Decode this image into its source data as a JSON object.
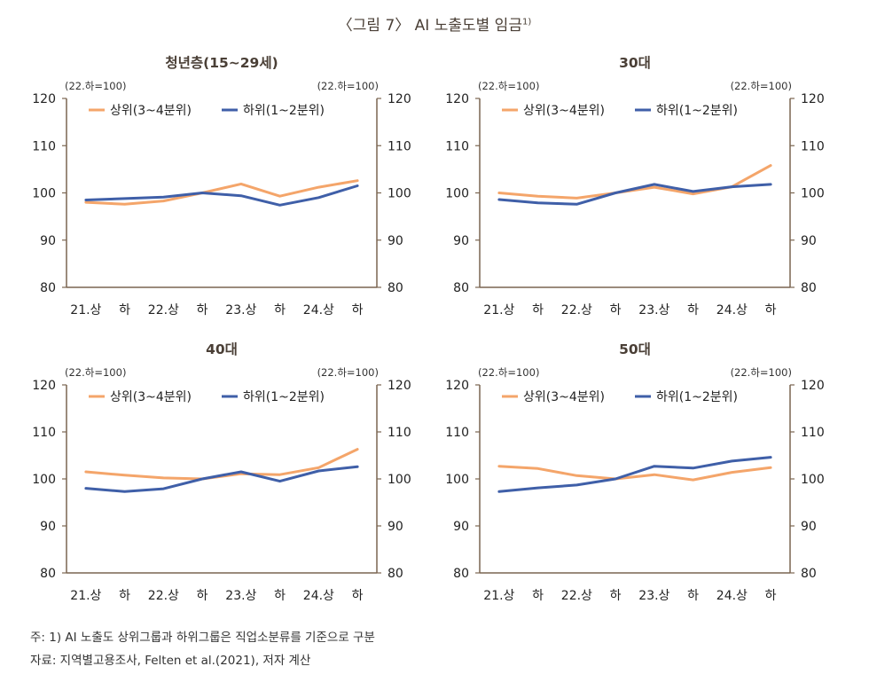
{
  "figure": {
    "title": "〈그림 7〉 AI 노출도별 임금",
    "title_sup": "1)",
    "notes": [
      "주: 1) AI 노출도 상위그룹과 하위그룹은 직업소분류를 기준으로 구분",
      "자료: 지역별고용조사, Felten et al.(2021), 저자 계산"
    ]
  },
  "colors": {
    "upper": "#F4A56A",
    "lower": "#3F5FA8",
    "axis": "#7A6550",
    "title": "#4a3f36"
  },
  "chart_data": [
    {
      "type": "line",
      "title": "청년층(15~29세)",
      "base_label_left": "(22.하=100)",
      "base_label_right": "(22.하=100)",
      "categories": [
        "21.상",
        "하",
        "22.상",
        "하",
        "23.상",
        "하",
        "24.상",
        "하"
      ],
      "ylim": [
        80,
        120
      ],
      "yticks": [
        80,
        90,
        100,
        110,
        120
      ],
      "series": [
        {
          "name": "상위(3~4분위)",
          "color": "#F4A56A",
          "values": [
            98.0,
            97.6,
            98.3,
            100.0,
            101.9,
            99.3,
            101.2,
            102.6
          ]
        },
        {
          "name": "하위(1~2분위)",
          "color": "#3F5FA8",
          "values": [
            98.5,
            98.8,
            99.1,
            100.0,
            99.4,
            97.4,
            99.0,
            101.5
          ]
        }
      ]
    },
    {
      "type": "line",
      "title": "30대",
      "base_label_left": "(22.하=100)",
      "base_label_right": "(22.하=100)",
      "categories": [
        "21.상",
        "하",
        "22.상",
        "하",
        "23.상",
        "하",
        "24.상",
        "하"
      ],
      "ylim": [
        80,
        120
      ],
      "yticks": [
        80,
        90,
        100,
        110,
        120
      ],
      "series": [
        {
          "name": "상위(3~4분위)",
          "color": "#F4A56A",
          "values": [
            100.0,
            99.3,
            98.9,
            100.0,
            101.2,
            99.8,
            101.3,
            105.8
          ]
        },
        {
          "name": "하위(1~2분위)",
          "color": "#3F5FA8",
          "values": [
            98.6,
            97.9,
            97.6,
            100.0,
            101.8,
            100.3,
            101.3,
            101.8
          ]
        }
      ]
    },
    {
      "type": "line",
      "title": "40대",
      "base_label_left": "(22.하=100)",
      "base_label_right": "(22.하=100)",
      "categories": [
        "21.상",
        "하",
        "22.상",
        "하",
        "23.상",
        "하",
        "24.상",
        "하"
      ],
      "ylim": [
        80,
        120
      ],
      "yticks": [
        80,
        90,
        100,
        110,
        120
      ],
      "series": [
        {
          "name": "상위(3~4분위)",
          "color": "#F4A56A",
          "values": [
            101.5,
            100.8,
            100.2,
            100.0,
            101.1,
            100.9,
            102.4,
            106.3
          ]
        },
        {
          "name": "하위(1~2분위)",
          "color": "#3F5FA8",
          "values": [
            98.0,
            97.3,
            97.9,
            100.0,
            101.5,
            99.5,
            101.7,
            102.6
          ]
        }
      ]
    },
    {
      "type": "line",
      "title": "50대",
      "base_label_left": "(22.하=100)",
      "base_label_right": "(22.하=100)",
      "categories": [
        "21.상",
        "하",
        "22.상",
        "하",
        "23.상",
        "하",
        "24.상",
        "하"
      ],
      "ylim": [
        80,
        120
      ],
      "yticks": [
        80,
        90,
        100,
        110,
        120
      ],
      "series": [
        {
          "name": "상위(3~4분위)",
          "color": "#F4A56A",
          "values": [
            102.7,
            102.2,
            100.7,
            100.0,
            100.9,
            99.8,
            101.4,
            102.4
          ]
        },
        {
          "name": "하위(1~2분위)",
          "color": "#3F5FA8",
          "values": [
            97.3,
            98.1,
            98.7,
            100.0,
            102.7,
            102.3,
            103.8,
            104.6
          ]
        }
      ]
    }
  ]
}
